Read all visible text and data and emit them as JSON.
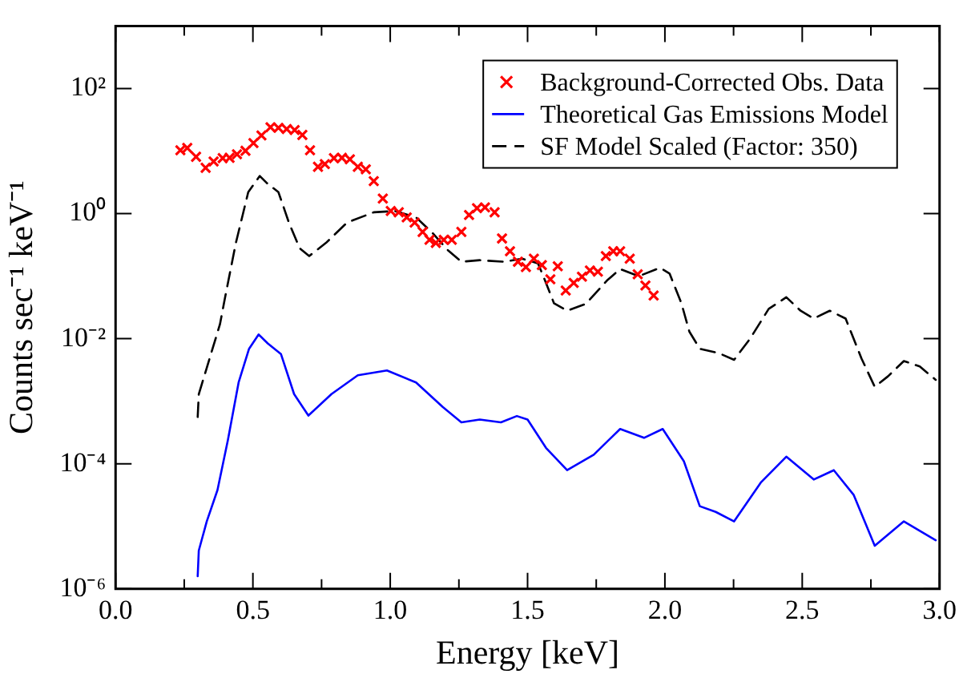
{
  "chart_data": {
    "type": "line",
    "xlabel": "Energy [keV]",
    "ylabel": "Counts sec⁻¹ keV⁻¹",
    "log": "y",
    "legend": "top right",
    "xlim": [
      0,
      3
    ],
    "ylim": [
      1e-06,
      1000
    ],
    "xticks": [
      {
        "value": 0,
        "label": "0.0"
      },
      {
        "value": 0.25,
        "label": null
      },
      {
        "value": 0.5,
        "label": "0.5"
      },
      {
        "value": 0.75,
        "label": null
      },
      {
        "value": 1,
        "label": "1.0"
      },
      {
        "value": 1.25,
        "label": null
      },
      {
        "value": 1.5,
        "label": "1.5"
      },
      {
        "value": 1.75,
        "label": null
      },
      {
        "value": 2,
        "label": "2.0"
      },
      {
        "value": 2.25,
        "label": null
      },
      {
        "value": 2.5,
        "label": "2.5"
      },
      {
        "value": 2.75,
        "label": null
      },
      {
        "value": 3,
        "label": "3.0"
      }
    ],
    "yticks": [
      {
        "value": 1e-06,
        "label": "10⁻⁶"
      },
      {
        "value": 0.0001,
        "label": "10⁻⁴"
      },
      {
        "value": 0.01,
        "label": "10⁻²"
      },
      {
        "value": 1,
        "label": "10⁰"
      },
      {
        "value": 100,
        "label": "10²"
      }
    ],
    "series": [
      {
        "name": "Background-Corrected Obs. Data",
        "type": "scatter",
        "marker": "cross",
        "color": "#ff0000",
        "x": [
          0.236,
          0.261,
          0.293,
          0.328,
          0.357,
          0.39,
          0.415,
          0.442,
          0.473,
          0.502,
          0.531,
          0.564,
          0.593,
          0.623,
          0.652,
          0.68,
          0.708,
          0.737,
          0.762,
          0.795,
          0.824,
          0.853,
          0.882,
          0.911,
          0.94,
          0.973,
          1.002,
          1.031,
          1.06,
          1.089,
          1.118,
          1.143,
          1.166,
          1.195,
          1.224,
          1.259,
          1.287,
          1.316,
          1.345,
          1.38,
          1.407,
          1.436,
          1.465,
          1.494,
          1.523,
          1.552,
          1.583,
          1.61,
          1.639,
          1.668,
          1.698,
          1.727,
          1.756,
          1.785,
          1.812,
          1.837,
          1.872,
          1.901,
          1.929,
          1.959
        ],
        "values": [
          10.3,
          11.2,
          8.1,
          5.4,
          6.8,
          7.7,
          7.8,
          8.9,
          10.1,
          13.4,
          17.8,
          24,
          23.5,
          22.5,
          21.7,
          18.1,
          10.3,
          5.6,
          6.2,
          7.7,
          7.8,
          7.4,
          5.6,
          5.1,
          3.3,
          1.74,
          1.1,
          1.05,
          0.87,
          0.72,
          0.51,
          0.38,
          0.34,
          0.38,
          0.38,
          0.51,
          0.95,
          1.22,
          1.26,
          1.05,
          0.4,
          0.25,
          0.17,
          0.14,
          0.19,
          0.15,
          0.089,
          0.144,
          0.059,
          0.078,
          0.098,
          0.123,
          0.118,
          0.21,
          0.25,
          0.25,
          0.19,
          0.107,
          0.071,
          0.049
        ]
      },
      {
        "name": "Theoretical Gas Emissions Model",
        "type": "line",
        "marker": "none",
        "line_style": "solid",
        "color": "#0000ff",
        "x": [
          0.299,
          0.303,
          0.332,
          0.371,
          0.409,
          0.448,
          0.486,
          0.521,
          0.554,
          0.602,
          0.65,
          0.702,
          0.786,
          0.882,
          0.988,
          1.094,
          1.191,
          1.259,
          1.326,
          1.403,
          1.461,
          1.5,
          1.567,
          1.644,
          1.741,
          1.837,
          1.924,
          1.992,
          2.069,
          2.127,
          2.185,
          2.252,
          2.349,
          2.442,
          2.542,
          2.615,
          2.687,
          2.764,
          2.87,
          2.986
        ],
        "values": [
          1.6e-06,
          4.1e-06,
          1.2e-05,
          3.8e-05,
          0.00024,
          0.002,
          0.0069,
          0.0117,
          0.0084,
          0.0057,
          0.0013,
          0.00059,
          0.0013,
          0.0026,
          0.0031,
          0.002,
          0.00081,
          0.00046,
          0.00051,
          0.00046,
          0.00058,
          0.00051,
          0.00018,
          7.9e-05,
          0.00014,
          0.00036,
          0.00026,
          0.00036,
          0.00011,
          2.1e-05,
          1.7e-05,
          1.2e-05,
          5e-05,
          0.00013,
          5.6e-05,
          7.9e-05,
          3.2e-05,
          4.9e-06,
          1.2e-05,
          6e-06
        ]
      },
      {
        "name": "SF Model Scaled (Factor: 350)",
        "type": "line",
        "marker": "none",
        "line_style": "dashed",
        "color": "#000000",
        "x": [
          0.299,
          0.303,
          0.38,
          0.4,
          0.438,
          0.483,
          0.525,
          0.55,
          0.593,
          0.631,
          0.67,
          0.705,
          0.766,
          0.843,
          0.94,
          1.017,
          1.094,
          1.152,
          1.21,
          1.259,
          1.326,
          1.413,
          1.48,
          1.538,
          1.567,
          1.596,
          1.644,
          1.712,
          1.789,
          1.837,
          1.905,
          1.982,
          2.017,
          2.06,
          2.089,
          2.127,
          2.195,
          2.252,
          2.31,
          2.378,
          2.442,
          2.494,
          2.542,
          2.6,
          2.658,
          2.716,
          2.764,
          2.812,
          2.87,
          2.928,
          2.986
        ],
        "values": [
          0.00056,
          0.0013,
          0.017,
          0.049,
          0.34,
          2.2,
          4,
          3.1,
          2.2,
          0.72,
          0.28,
          0.21,
          0.34,
          0.72,
          1.05,
          1.1,
          0.87,
          0.5,
          0.26,
          0.17,
          0.18,
          0.17,
          0.19,
          0.16,
          0.078,
          0.037,
          0.028,
          0.036,
          0.085,
          0.13,
          0.1,
          0.136,
          0.11,
          0.037,
          0.013,
          0.0069,
          0.0059,
          0.0046,
          0.01,
          0.03,
          0.046,
          0.028,
          0.021,
          0.028,
          0.021,
          0.0048,
          0.0017,
          0.0025,
          0.0044,
          0.0036,
          0.0022
        ]
      }
    ]
  }
}
